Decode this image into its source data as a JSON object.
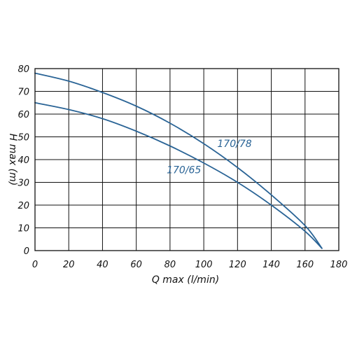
{
  "chart_data": {
    "type": "line",
    "xlabel": "Q max (l/min)",
    "ylabel": "H max (m)",
    "xlim": [
      0,
      180
    ],
    "ylim": [
      0,
      80
    ],
    "xticks": [
      0,
      20,
      40,
      60,
      80,
      100,
      120,
      140,
      160,
      180
    ],
    "yticks": [
      0,
      10,
      20,
      30,
      40,
      50,
      60,
      70,
      80
    ],
    "grid": true,
    "line_color": "#2a6496",
    "grid_color": "#111111",
    "series": [
      {
        "name": "170/78",
        "x": [
          0,
          20,
          40,
          60,
          80,
          100,
          120,
          140,
          160,
          170
        ],
        "y": [
          78,
          74.5,
          69.5,
          63.5,
          56,
          47,
          36.5,
          24.5,
          11,
          1
        ],
        "label_at": [
          108,
          45.5
        ]
      },
      {
        "name": "170/65",
        "x": [
          0,
          20,
          40,
          60,
          80,
          100,
          120,
          140,
          160,
          170
        ],
        "y": [
          65,
          62,
          58,
          52.5,
          46,
          38.5,
          30,
          20,
          8.5,
          1
        ],
        "label_at": [
          78,
          34
        ]
      }
    ]
  }
}
